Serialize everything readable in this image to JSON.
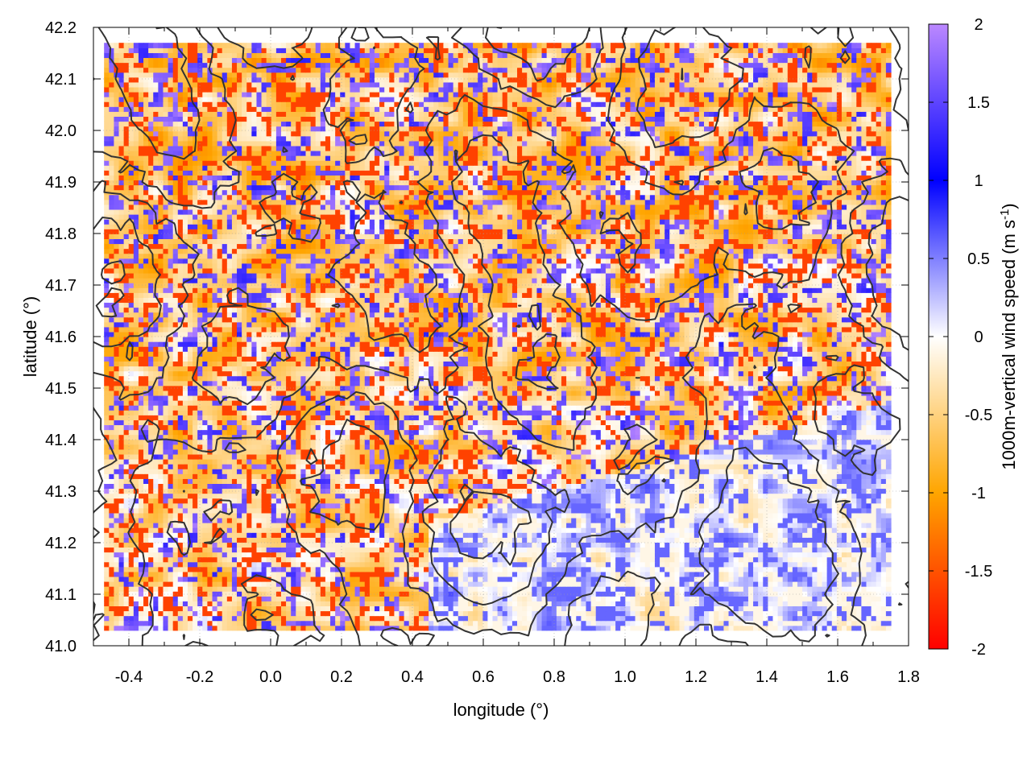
{
  "chart_data": {
    "type": "heatmap",
    "title": "",
    "xlabel": "longitude (°)",
    "ylabel": "latitude (°)",
    "xlim": [
      -0.5,
      1.8
    ],
    "ylim": [
      41.0,
      42.2
    ],
    "x_ticks": [
      -0.4,
      -0.2,
      0.0,
      0.2,
      0.4,
      0.6,
      0.8,
      1.0,
      1.2,
      1.4,
      1.6,
      1.8
    ],
    "x_tick_labels": [
      "-0.4",
      "-0.2",
      "0.0",
      "0.2",
      "0.4",
      "0.6",
      "0.8",
      "1.0",
      "1.2",
      "1.4",
      "1.6",
      "1.8"
    ],
    "y_ticks": [
      41.0,
      41.1,
      41.2,
      41.3,
      41.4,
      41.5,
      41.6,
      41.7,
      41.8,
      41.9,
      42.0,
      42.1,
      42.2
    ],
    "y_tick_labels": [
      "41.0",
      "41.1",
      "41.2",
      "41.3",
      "41.4",
      "41.5",
      "41.6",
      "41.7",
      "41.8",
      "41.9",
      "42.0",
      "42.1",
      "42.2"
    ],
    "grid": true,
    "colorbar": {
      "label_main": "1000m-vertical wind speed (m s",
      "label_sup": "-1",
      "label_close": ")",
      "range": [
        -2,
        2
      ],
      "ticks": [
        -2,
        -1.5,
        -1,
        -0.5,
        0,
        0.5,
        1,
        1.5,
        2
      ],
      "tick_labels": [
        "-2",
        "-1.5",
        "-1",
        "-0.5",
        "0",
        "0.5",
        "1",
        "1.5",
        "2"
      ],
      "color_stops": [
        {
          "value": -2.0,
          "color": "#ff0000"
        },
        {
          "value": -1.0,
          "color": "#ffa500"
        },
        {
          "value": 0.0,
          "color": "#ffffff"
        },
        {
          "value": 1.0,
          "color": "#0000ff"
        },
        {
          "value": 2.0,
          "color": "#bb88ff"
        }
      ]
    },
    "data_extent": {
      "lon": [
        -0.47,
        1.75
      ],
      "lat": [
        41.03,
        42.17
      ]
    },
    "contour_color": "#333333"
  }
}
